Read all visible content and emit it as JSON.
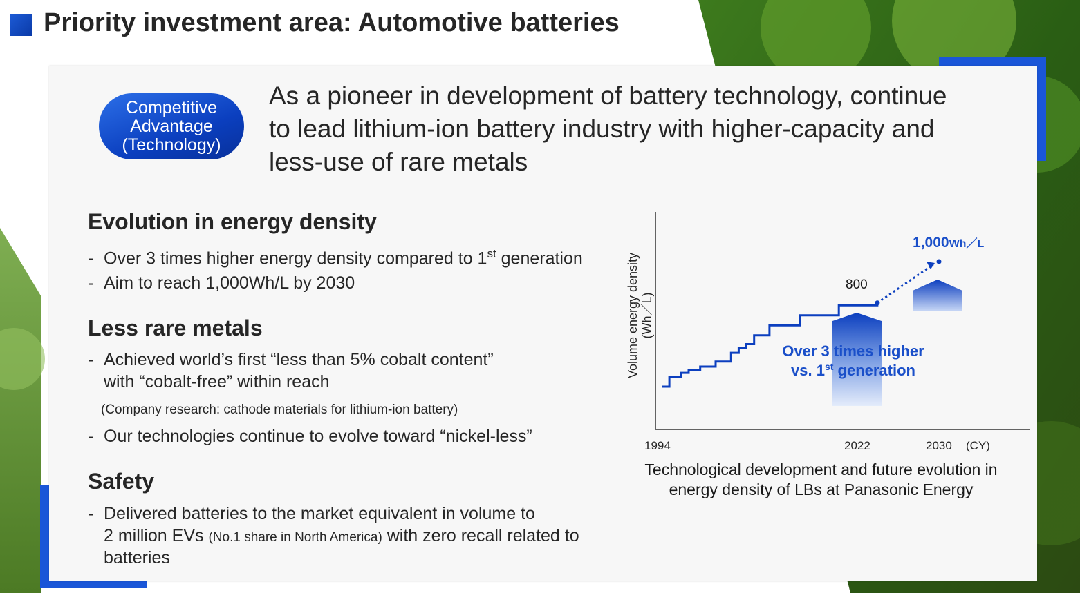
{
  "header": {
    "title": "Priority investment area: Automotive batteries"
  },
  "badge": {
    "line1": "Competitive",
    "line2": "Advantage",
    "line3": "(Technology)"
  },
  "lead": {
    "line1": "As a pioneer in development of battery technology, continue",
    "line2": "to lead lithium-ion battery industry with higher-capacity and",
    "line3": "less-use of rare metals"
  },
  "sections": {
    "energy": {
      "heading": "Evolution in energy density",
      "b1_pre": "Over 3 times higher energy density compared to 1",
      "b1_sup": "st",
      "b1_post": " generation",
      "b2": "Aim to reach 1,000Wh/L by 2030"
    },
    "metals": {
      "heading": "Less rare metals",
      "b1_l1": "Achieved world’s first “less than 5% cobalt content”",
      "b1_l2": "with “cobalt-free” within reach",
      "note": "(Company research: cathode materials for lithium-ion battery)",
      "b2": "Our technologies continue to evolve toward “nickel-less”"
    },
    "safety": {
      "heading": "Safety",
      "b1_l1": "Delivered batteries to the market equivalent in volume to",
      "b1_l2_pre": "2 million EVs ",
      "b1_l2_small": "(No.1 share in North America)",
      "b1_l2_post": " with zero recall related to",
      "b1_l3": "batteries"
    },
    "dash": "-"
  },
  "chart_data": {
    "type": "line",
    "ylabel_l1": "Volume energy density",
    "ylabel_l2": "(Wh／L)",
    "x_ticks": [
      "1994",
      "2022",
      "2030"
    ],
    "x_unit": "(CY)",
    "series": [
      {
        "values": [
          [
            1994,
            0.0
          ],
          [
            1995,
            0.0
          ],
          [
            1995,
            0.08
          ],
          [
            1996.5,
            0.08
          ],
          [
            1996.5,
            0.11
          ],
          [
            1997.5,
            0.11
          ],
          [
            1997.5,
            0.13
          ],
          [
            1999,
            0.13
          ],
          [
            1999,
            0.16
          ],
          [
            2001,
            0.16
          ],
          [
            2001,
            0.2
          ],
          [
            2003,
            0.2
          ],
          [
            2003,
            0.27
          ],
          [
            2004,
            0.27
          ],
          [
            2004,
            0.31
          ],
          [
            2005,
            0.31
          ],
          [
            2005,
            0.34
          ],
          [
            2006,
            0.34
          ],
          [
            2006,
            0.41
          ],
          [
            2008,
            0.41
          ],
          [
            2008,
            0.49
          ],
          [
            2012,
            0.49
          ],
          [
            2012,
            0.57
          ],
          [
            2017,
            0.57
          ],
          [
            2017,
            0.65
          ],
          [
            2022,
            0.65
          ],
          [
            2022,
            0.67
          ]
        ]
      },
      {
        "values": [
          [
            2022,
            0.67
          ],
          [
            2030,
            1.0
          ]
        ]
      }
    ],
    "labels": {
      "p2022": "800",
      "p2030_value": "1,000",
      "p2030_unit": "Wh／L"
    },
    "annotation": {
      "line1": "Over 3 times higher",
      "line2_pre": "vs. 1",
      "line2_sup": "st",
      "line2_post": " generation"
    },
    "caption_l1": "Technological development and future evolution in",
    "caption_l2": "energy density of LBs at Panasonic Energy",
    "colors": {
      "line": "#0c3fbf",
      "annotation": "#1a4fc9"
    }
  }
}
